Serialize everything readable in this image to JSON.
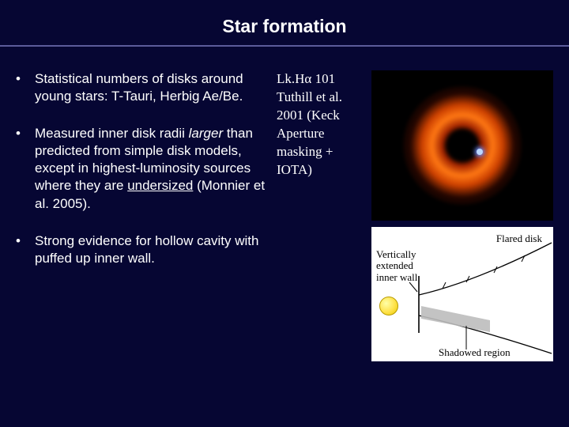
{
  "title": "Star formation",
  "bullets": [
    {
      "html": "Statistical numbers of disks around young stars: T-Tauri, Herbig Ae/Be."
    },
    {
      "html": "Measured inner disk radii <span class=\"italic\">larger</span> than predicted from simple disk models, except in highest-luminosity sources where they are <span class=\"ul\">undersized</span> (Monnier et al. 2005)."
    },
    {
      "html": "Strong evidence for hollow cavity with puffed up inner wall."
    }
  ],
  "caption": "Lk.Hα 101 Tuthill et al. 2001 (Keck Aperture masking + IOTA)",
  "diagram": {
    "flared_label": "Flared disk",
    "vertical_label": "Vertically extended inner wall",
    "shadow_label": "Shadowed region",
    "colors": {
      "bg": "#ffffff",
      "line": "#000000",
      "shadow_fill": "#c0c0c0"
    }
  },
  "theme": {
    "slide_bg": "#060633",
    "rule": "#5b5b9a",
    "text": "#ffffff"
  }
}
